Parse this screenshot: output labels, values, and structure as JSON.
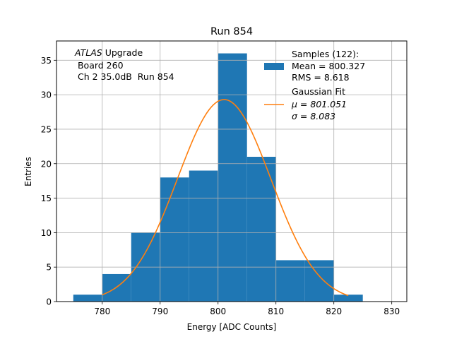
{
  "chart_data": {
    "type": "bar",
    "title": "Run 854",
    "xlabel": "Energy [ADC Counts]",
    "ylabel": "Entries",
    "xlim": [
      772.1,
      832.6
    ],
    "ylim": [
      0,
      37.8
    ],
    "grid": true,
    "xticks": [
      780,
      790,
      800,
      810,
      820,
      830
    ],
    "yticks": [
      0,
      5,
      10,
      15,
      20,
      25,
      30,
      35
    ],
    "histogram": {
      "name": "Samples",
      "color": "#1f77b4",
      "bin_edges": [
        775,
        780,
        785,
        790,
        795,
        800,
        805,
        810,
        815,
        820,
        825
      ],
      "counts": [
        1,
        4,
        10,
        18,
        19,
        36,
        21,
        6,
        6,
        1
      ]
    },
    "fit": {
      "name": "Gaussian Fit",
      "color": "#ff7f0e",
      "mu": 801.051,
      "sigma": 8.083,
      "x_range": [
        780,
        822.5
      ],
      "amplitude": 29.3
    },
    "annotation": {
      "line1_italic": "ATLAS",
      "line1_rest": " Upgrade",
      "line2": " Board 260",
      "line3": " Ch 2 35.0dB  Run 854"
    },
    "legend": {
      "placement": "top-right",
      "entries": [
        {
          "lines": [
            "Samples (122):",
            "Mean = 800.327",
            "RMS = 8.618"
          ],
          "marker": "patch"
        },
        {
          "lines": [
            "Gaussian Fit",
            "μ = 801.051",
            "σ = 8.083"
          ],
          "marker": "line"
        }
      ]
    }
  }
}
